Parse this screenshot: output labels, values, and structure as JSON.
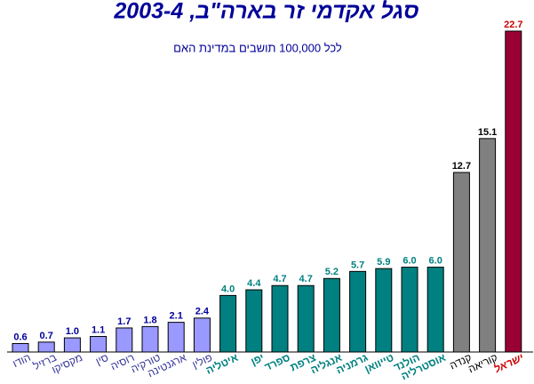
{
  "chart_data": {
    "type": "bar",
    "title": "סגל אקדמי זר בארה\"ב, 2003-4",
    "subtitle": "לכל 100,000 תושבים במדינת האם",
    "categories": [
      "הודו",
      "ברזיל",
      "מקסיקו",
      "סין",
      "רוסיה",
      "טורקיה",
      "ארגנטינה",
      "פולין",
      "איטליה",
      "יפן",
      "ספרד",
      "צרפת",
      "אנגליה",
      "גרמניה",
      "טייוואן",
      "הולנד",
      "אוסטרליה",
      "קנדה",
      "קוריאה",
      "ישראל"
    ],
    "values": [
      0.6,
      0.7,
      1.0,
      1.1,
      1.7,
      1.8,
      2.1,
      2.4,
      4.0,
      4.4,
      4.7,
      4.7,
      5.2,
      5.7,
      5.9,
      6.0,
      6.0,
      12.7,
      15.1,
      22.7
    ],
    "value_labels": [
      "0.6",
      "0.7",
      "1.0",
      "1.1",
      "1.7",
      "1.8",
      "2.1",
      "2.4",
      "4.0",
      "4.4",
      "4.7",
      "4.7",
      "5.2",
      "5.7",
      "5.9",
      "6.0",
      "6.0",
      "12.7",
      "15.1",
      "22.7"
    ],
    "colors": [
      "#9999ff",
      "#9999ff",
      "#9999ff",
      "#9999ff",
      "#9999ff",
      "#9999ff",
      "#9999ff",
      "#9999ff",
      "#008080",
      "#008080",
      "#008080",
      "#008080",
      "#008080",
      "#008080",
      "#008080",
      "#008080",
      "#008080",
      "#808080",
      "#808080",
      "#990033"
    ]
  }
}
